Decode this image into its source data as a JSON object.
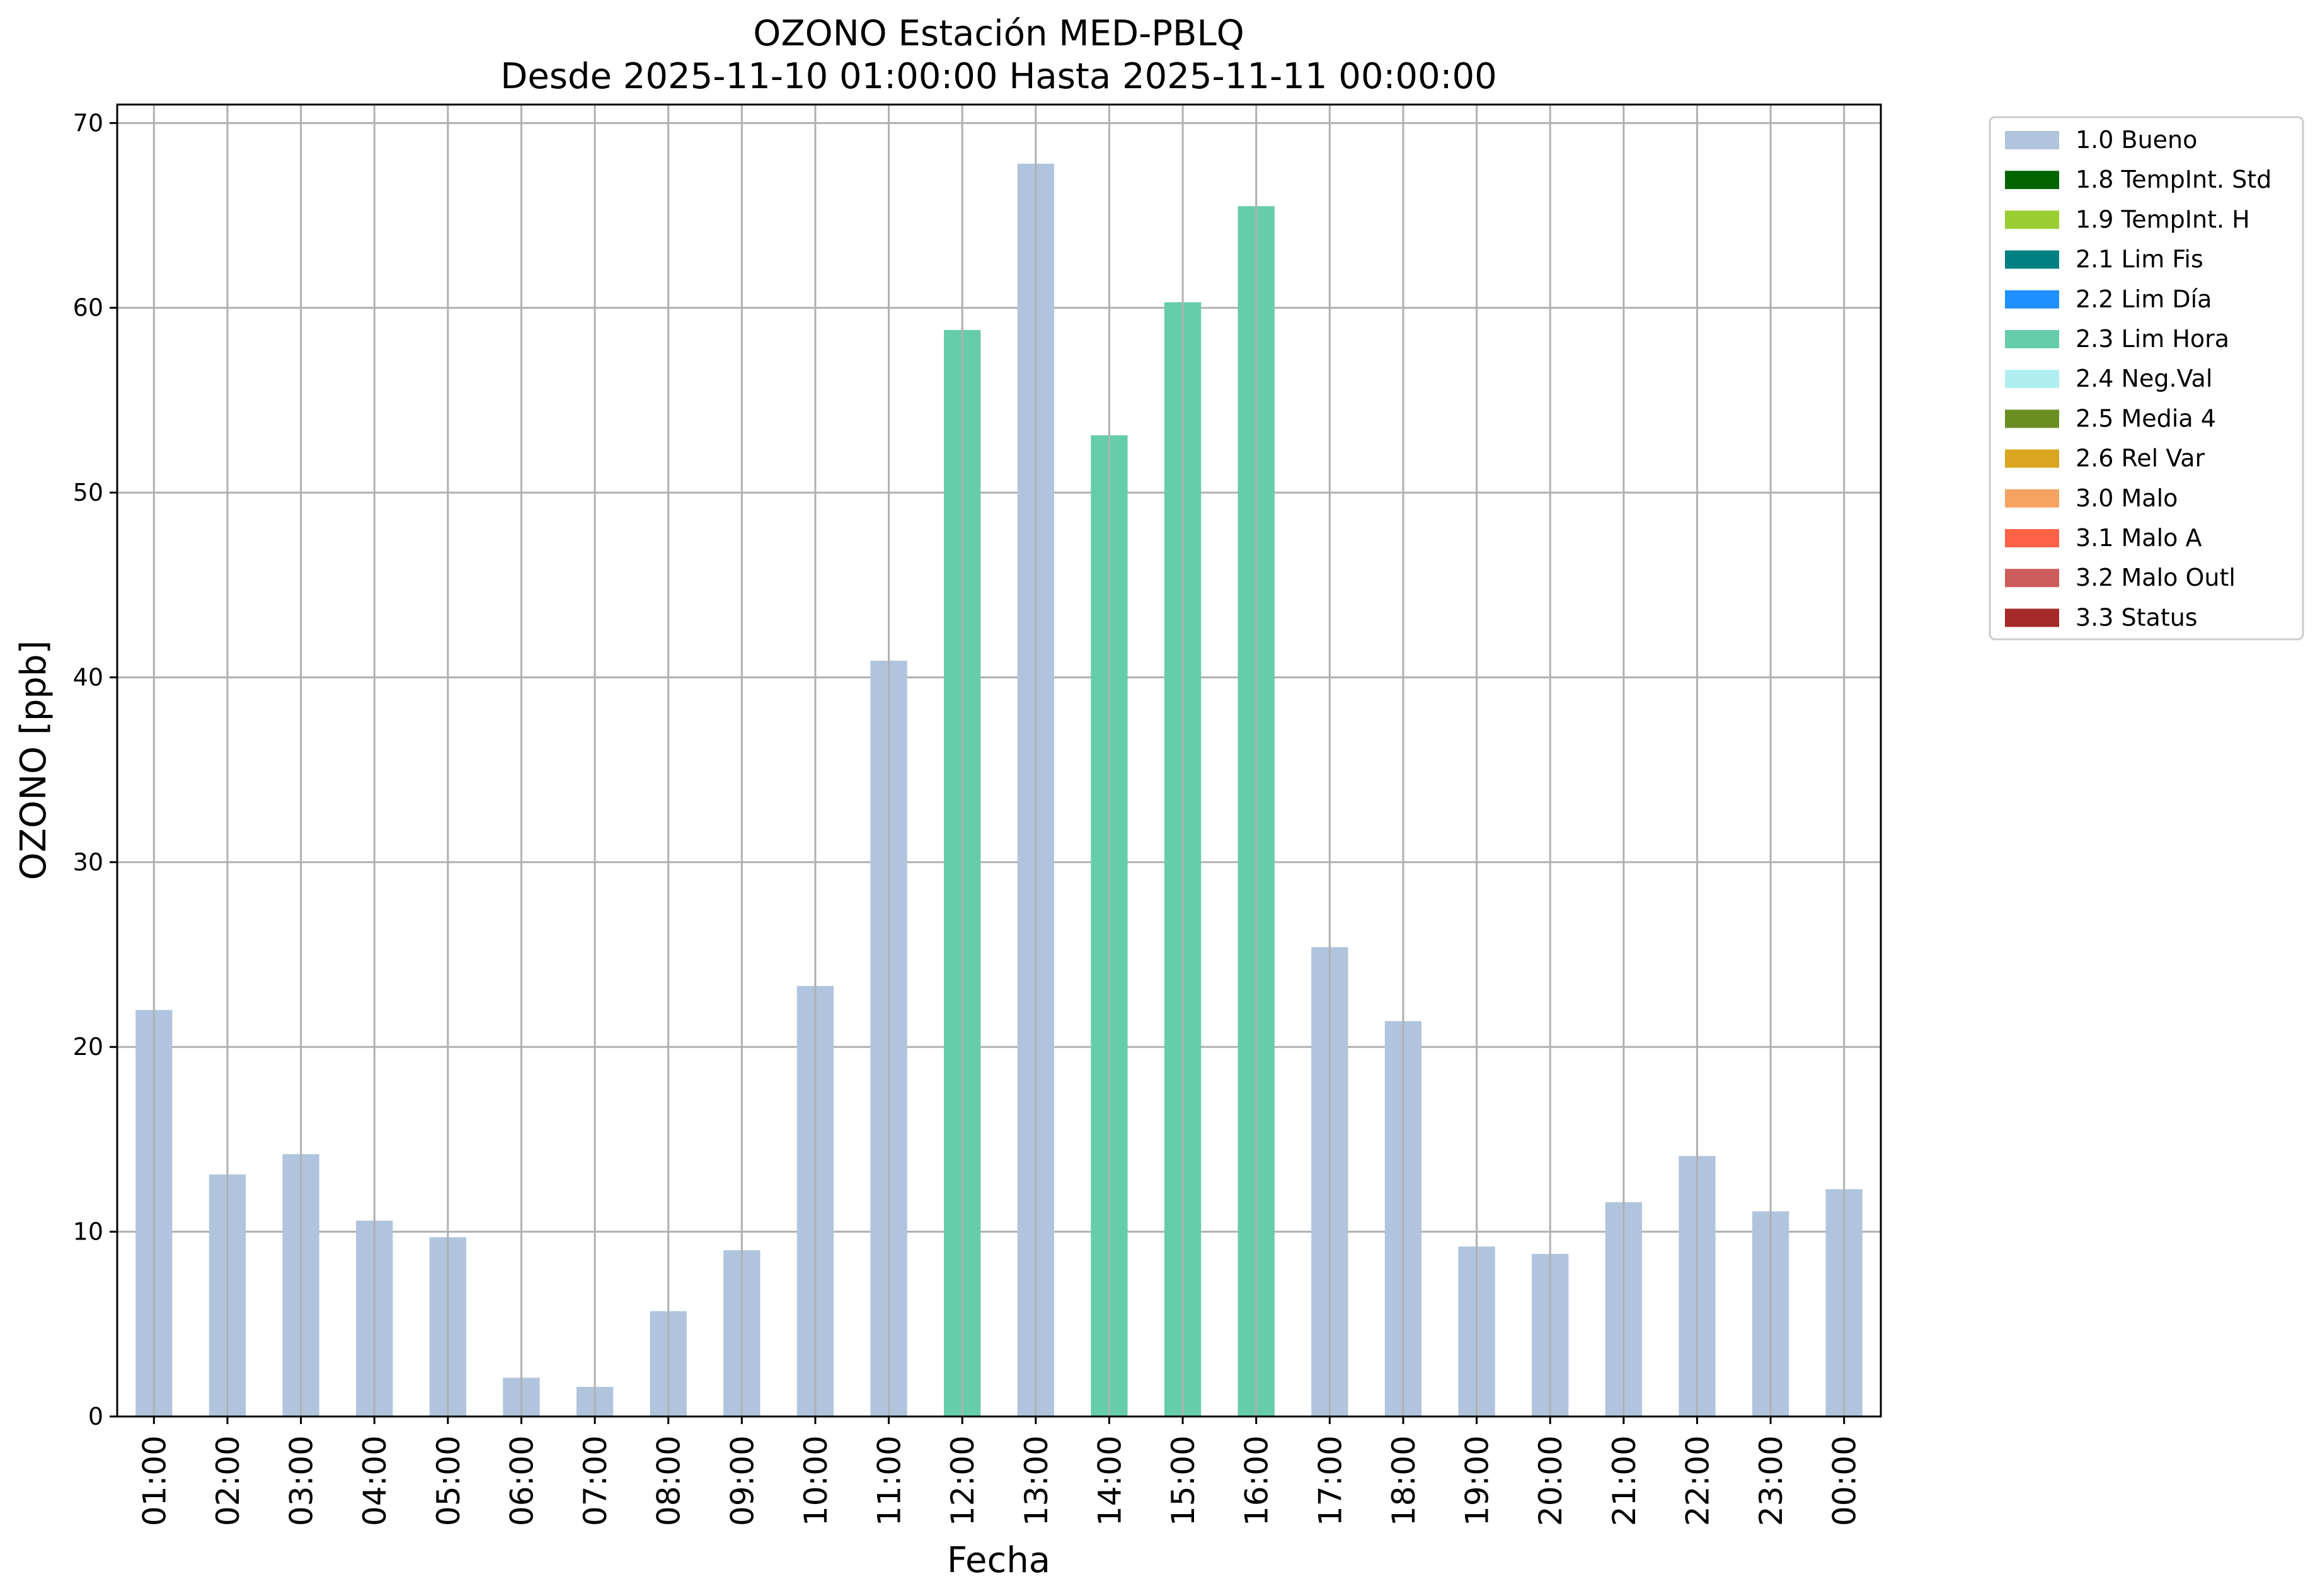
{
  "chart_data": {
    "type": "bar",
    "title": "OZONO Estación MED-PBLQ",
    "subtitle": "Desde 2025-11-10 01:00:00 Hasta 2025-11-11 00:00:00",
    "xlabel": "Fecha",
    "ylabel": "OZONO [ppb]",
    "ylim": [
      0,
      71
    ],
    "yticks": [
      0,
      10,
      20,
      30,
      40,
      50,
      60,
      70
    ],
    "grid": true,
    "legend_position": "outside-top-right",
    "categories": [
      "01:00",
      "02:00",
      "03:00",
      "04:00",
      "05:00",
      "06:00",
      "07:00",
      "08:00",
      "09:00",
      "10:00",
      "11:00",
      "12:00",
      "13:00",
      "14:00",
      "15:00",
      "16:00",
      "17:00",
      "18:00",
      "19:00",
      "20:00",
      "21:00",
      "22:00",
      "23:00",
      "00:00"
    ],
    "values": [
      22.0,
      13.1,
      14.2,
      10.6,
      9.7,
      2.1,
      1.6,
      5.7,
      9.0,
      23.3,
      40.9,
      58.8,
      67.8,
      53.1,
      60.3,
      65.5,
      25.4,
      21.4,
      9.2,
      8.8,
      11.6,
      14.1,
      11.1,
      12.3
    ],
    "flags": [
      "1.0 Bueno",
      "1.0 Bueno",
      "1.0 Bueno",
      "1.0 Bueno",
      "1.0 Bueno",
      "1.0 Bueno",
      "1.0 Bueno",
      "1.0 Bueno",
      "1.0 Bueno",
      "1.0 Bueno",
      "1.0 Bueno",
      "2.3 Lim Hora",
      "1.0 Bueno",
      "2.3 Lim Hora",
      "2.3 Lim Hora",
      "2.3 Lim Hora",
      "1.0 Bueno",
      "1.0 Bueno",
      "1.0 Bueno",
      "1.0 Bueno",
      "1.0 Bueno",
      "1.0 Bueno",
      "1.0 Bueno",
      "1.0 Bueno"
    ],
    "legend": [
      {
        "label": "1.0 Bueno",
        "color": "#b0c4de"
      },
      {
        "label": "1.8 TempInt. Std",
        "color": "#006400"
      },
      {
        "label": "1.9 TempInt. H",
        "color": "#9acd32"
      },
      {
        "label": "2.1 Lim Fis",
        "color": "#008080"
      },
      {
        "label": "2.2 Lim Día",
        "color": "#1e90ff"
      },
      {
        "label": "2.3 Lim Hora",
        "color": "#66cdaa"
      },
      {
        "label": "2.4 Neg.Val",
        "color": "#afeeee"
      },
      {
        "label": "2.5 Media 4",
        "color": "#6b8e23"
      },
      {
        "label": "2.6 Rel Var",
        "color": "#daa520"
      },
      {
        "label": "3.0 Malo",
        "color": "#f4a460"
      },
      {
        "label": "3.1 Malo A",
        "color": "#ff6347"
      },
      {
        "label": "3.2 Malo Outl",
        "color": "#cd5c5c"
      },
      {
        "label": "3.3 Status",
        "color": "#a52a2a"
      }
    ]
  }
}
